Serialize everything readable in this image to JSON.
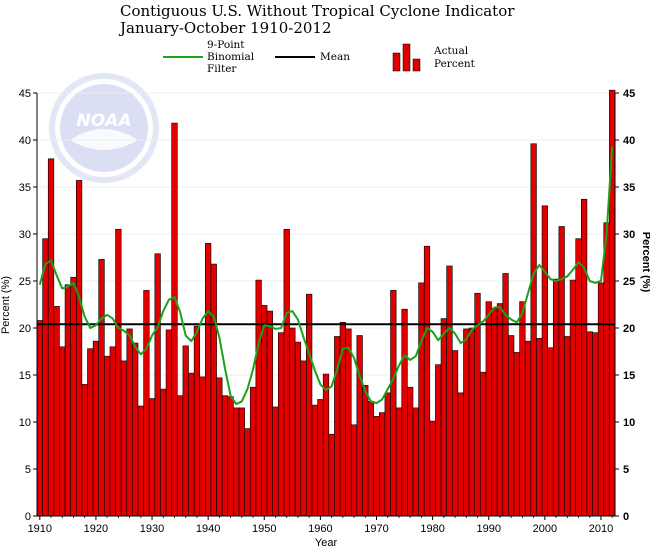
{
  "chart_data": {
    "type": "bar",
    "title": "Contiguous U.S. Without Tropical Cyclone Indicator",
    "subtitle": "January-October 1910-2012",
    "xlabel": "Year",
    "ylabel": "Percent (%)",
    "ylabel_right": "Percent (%)",
    "xlim": [
      1910,
      2012
    ],
    "ylim": [
      0,
      45
    ],
    "xticks": [
      "1910",
      "1920",
      "1930",
      "1940",
      "1950",
      "1960",
      "1970",
      "1980",
      "1990",
      "2000",
      "2010"
    ],
    "yticks": [
      "0",
      "5",
      "10",
      "15",
      "20",
      "25",
      "30",
      "35",
      "40",
      "45"
    ],
    "mean": 20.4,
    "legend": {
      "filter": "9-Point Binomial Filter",
      "filter_lines": [
        "9-Point",
        "Binomial",
        "Filter"
      ],
      "mean": "Mean",
      "actual": "Actual Percent",
      "actual_lines": [
        "Actual",
        "Percent"
      ]
    },
    "watermark": "NOAA",
    "colors": {
      "bar": "#e00000",
      "bar_edge": "#000000",
      "filter": "#1aa31a",
      "mean": "#000000",
      "watermark": "#d6dcf2"
    },
    "years": [
      1910,
      1911,
      1912,
      1913,
      1914,
      1915,
      1916,
      1917,
      1918,
      1919,
      1920,
      1921,
      1922,
      1923,
      1924,
      1925,
      1926,
      1927,
      1928,
      1929,
      1930,
      1931,
      1932,
      1933,
      1934,
      1935,
      1936,
      1937,
      1938,
      1939,
      1940,
      1941,
      1942,
      1943,
      1944,
      1945,
      1946,
      1947,
      1948,
      1949,
      1950,
      1951,
      1952,
      1953,
      1954,
      1955,
      1956,
      1957,
      1958,
      1959,
      1960,
      1961,
      1962,
      1963,
      1964,
      1965,
      1966,
      1967,
      1968,
      1969,
      1970,
      1971,
      1972,
      1973,
      1974,
      1975,
      1976,
      1977,
      1978,
      1979,
      1980,
      1981,
      1982,
      1983,
      1984,
      1985,
      1986,
      1987,
      1988,
      1989,
      1990,
      1991,
      1992,
      1993,
      1994,
      1995,
      1996,
      1997,
      1998,
      1999,
      2000,
      2001,
      2002,
      2003,
      2004,
      2005,
      2006,
      2007,
      2008,
      2009,
      2010,
      2011,
      2012
    ],
    "values": [
      20.8,
      29.5,
      38.0,
      22.3,
      18.0,
      24.6,
      25.4,
      35.7,
      14.0,
      17.8,
      18.6,
      27.3,
      17.0,
      18.0,
      30.5,
      16.5,
      19.9,
      18.4,
      11.7,
      24.0,
      12.5,
      27.9,
      13.5,
      19.8,
      41.8,
      12.8,
      18.1,
      15.2,
      20.2,
      14.8,
      29.0,
      26.8,
      14.7,
      12.8,
      12.7,
      11.5,
      11.5,
      9.3,
      13.7,
      25.1,
      22.4,
      21.8,
      11.6,
      19.5,
      30.5,
      20.0,
      18.5,
      16.5,
      23.6,
      11.8,
      12.4,
      15.1,
      8.7,
      19.1,
      20.6,
      19.9,
      9.7,
      19.2,
      13.9,
      12.2,
      10.6,
      11.0,
      13.1,
      24.0,
      11.5,
      22.0,
      13.7,
      11.5,
      24.8,
      28.7,
      10.1,
      16.1,
      21.0,
      26.6,
      17.6,
      13.1,
      19.9,
      20.0,
      23.7,
      15.3,
      22.8,
      22.1,
      22.6,
      25.8,
      19.2,
      17.4,
      22.8,
      18.6,
      39.6,
      18.9,
      33.0,
      17.9,
      25.2,
      30.8,
      19.1,
      25.1,
      29.5,
      33.7,
      19.6,
      19.5,
      24.8,
      31.2,
      45.3
    ],
    "filter_values": [
      24.6,
      26.8,
      27.2,
      25.6,
      24.2,
      24.4,
      24.8,
      23.3,
      21.2,
      20.0,
      20.3,
      21.0,
      21.4,
      21.0,
      20.0,
      19.7,
      19.2,
      18.0,
      17.2,
      17.8,
      19.2,
      20.1,
      21.8,
      23.0,
      23.3,
      21.7,
      19.2,
      18.6,
      19.6,
      21.0,
      21.8,
      21.2,
      19.0,
      15.7,
      12.8,
      11.9,
      12.2,
      13.5,
      15.6,
      18.4,
      20.3,
      20.2,
      19.9,
      20.0,
      21.6,
      21.8,
      20.9,
      19.0,
      17.3,
      15.5,
      14.0,
      13.4,
      13.8,
      15.6,
      17.8,
      17.9,
      16.8,
      14.9,
      13.3,
      12.2,
      12.0,
      12.4,
      13.5,
      14.6,
      16.0,
      17.1,
      16.6,
      17.0,
      18.6,
      20.0,
      19.6,
      18.7,
      19.4,
      20.0,
      19.4,
      18.4,
      18.8,
      19.8,
      20.3,
      20.7,
      21.4,
      22.2,
      22.2,
      21.4,
      20.9,
      20.6,
      21.6,
      23.7,
      25.8,
      26.7,
      26.0,
      25.2,
      25.0,
      25.2,
      25.5,
      26.2,
      27.0,
      26.4,
      25.0,
      24.8,
      25.0,
      30.0,
      39.3
    ]
  }
}
